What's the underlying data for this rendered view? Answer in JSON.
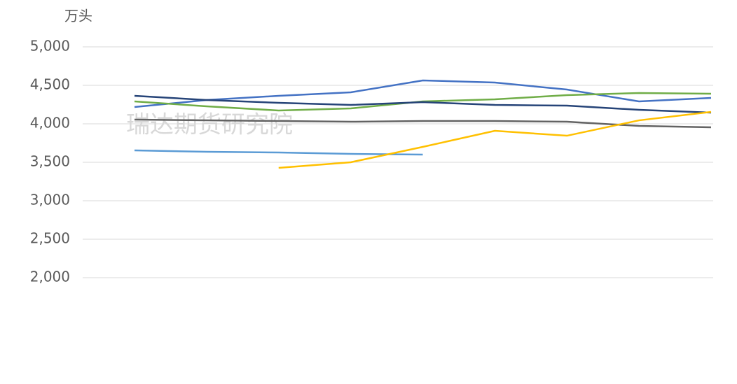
{
  "chart_data": {
    "type": "line",
    "y_unit": "万头",
    "watermark": "瑞达期货研究院",
    "categories": [
      null,
      null,
      null,
      null,
      null,
      null,
      null,
      null,
      null
    ],
    "ylim": [
      2000,
      5000
    ],
    "yticks": [
      {
        "value": 2000,
        "label": "2,000"
      },
      {
        "value": 2500,
        "label": "2,500"
      },
      {
        "value": 3000,
        "label": "3,000"
      },
      {
        "value": 3500,
        "label": "3,500"
      },
      {
        "value": 4000,
        "label": "4,000"
      },
      {
        "value": 4500,
        "label": "4,500"
      },
      {
        "value": 5000,
        "label": "5,000"
      }
    ],
    "grid": true,
    "series": [
      {
        "color": "#4472c4",
        "values": [
          4218,
          4309,
          4364,
          4409,
          4564,
          4536,
          4445,
          4291,
          4336
        ]
      },
      {
        "color": "#70ad47",
        "values": [
          4291,
          4227,
          4173,
          4200,
          4291,
          4318,
          4373,
          4400,
          4391
        ]
      },
      {
        "color": "#264478",
        "values": [
          4364,
          4309,
          4273,
          4245,
          4282,
          4245,
          4236,
          4182,
          4145
        ]
      },
      {
        "color": "#636363",
        "values": [
          4055,
          4045,
          4036,
          4027,
          4036,
          4036,
          4027,
          3973,
          3955
        ]
      },
      {
        "color": "#5b9bd5",
        "values": [
          3655,
          3636,
          3627,
          3609,
          3600,
          null,
          null,
          null,
          null
        ]
      },
      {
        "color": "#ffc000",
        "values": [
          null,
          null,
          3427,
          3500,
          3700,
          3909,
          3845,
          4045,
          4155
        ]
      }
    ]
  }
}
